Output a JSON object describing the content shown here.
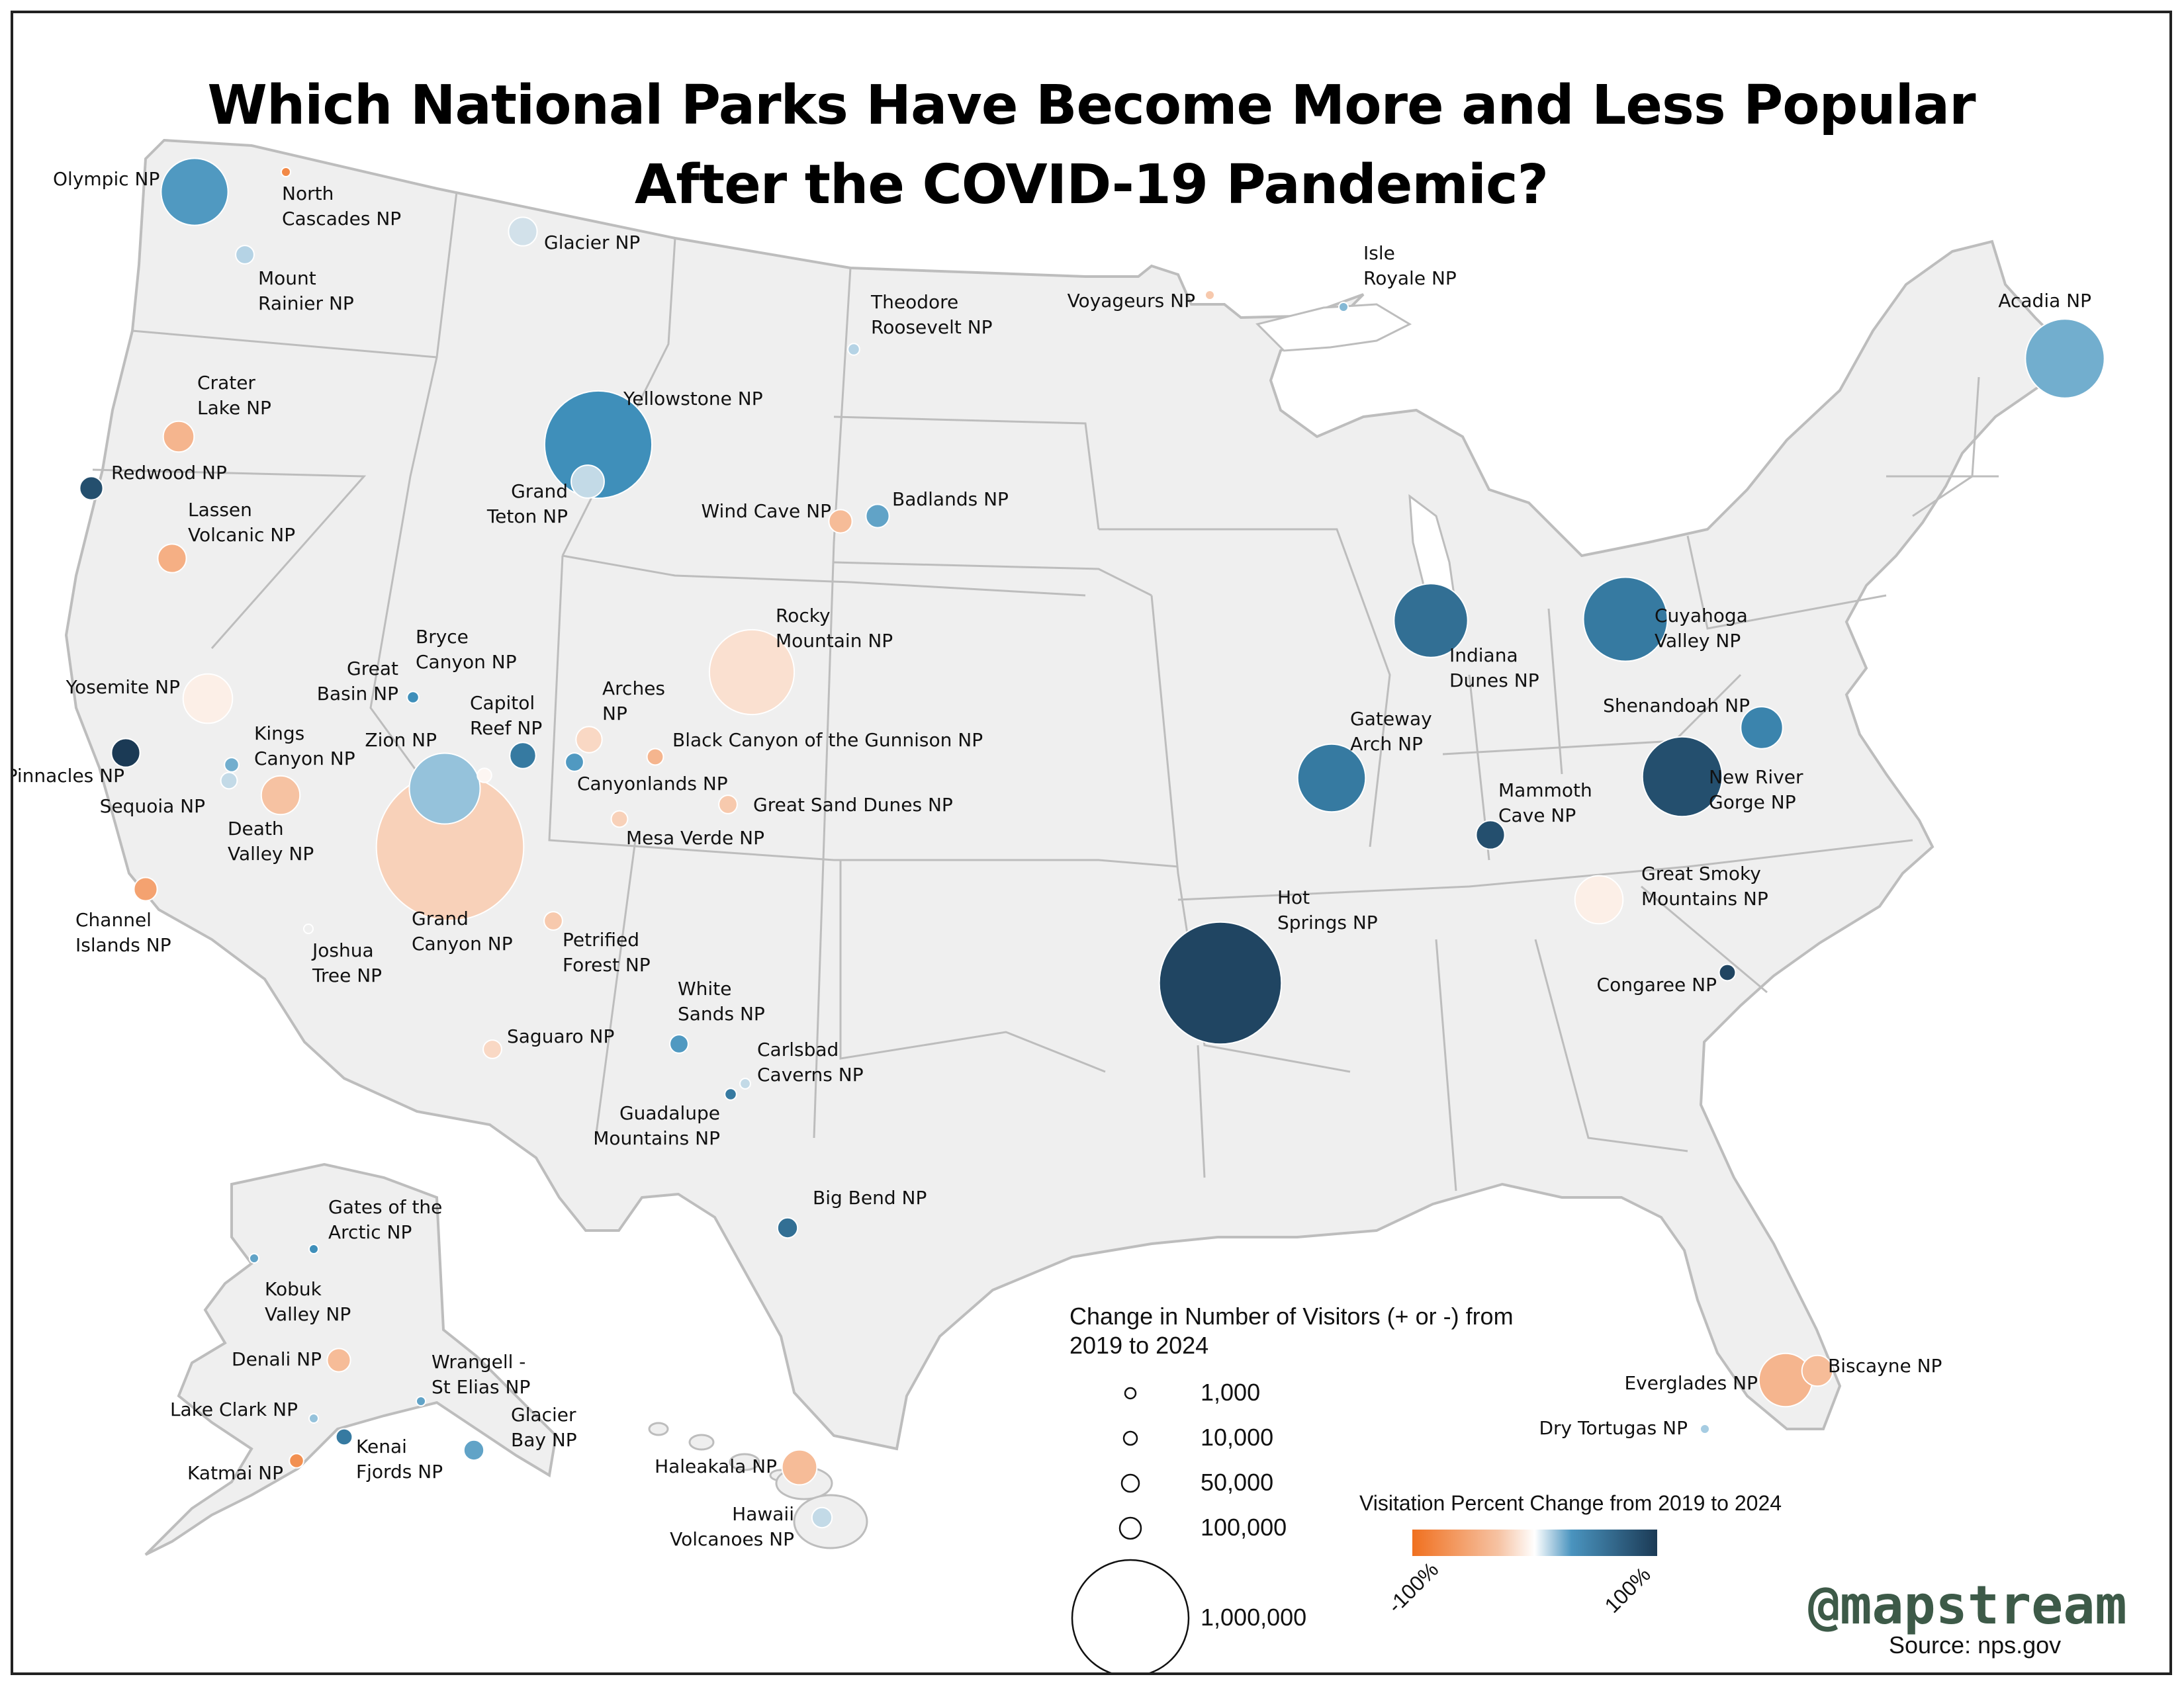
{
  "title": {
    "line1": "Which National Parks Have Become More and Less Popular",
    "line2": "After the COVID-19 Pandemic?"
  },
  "colors": {
    "land": "#efefef",
    "border": "#bdbdbd",
    "negative_strong": "#f0701f",
    "negative_light": "#f6c2a2",
    "neutral": "#fbf3ef",
    "positive_light": "#a8cfe3",
    "positive_mid": "#3e8db8",
    "positive_strong": "#1b3d57"
  },
  "parks": [
    {
      "name": [
        "Olympic NP"
      ],
      "pct": 0.55,
      "visitors": 330000
    },
    {
      "name": [
        "North",
        "Cascades NP"
      ],
      "pct": -0.8,
      "visitors": 2000
    },
    {
      "name": [
        "Mount",
        "Rainier NP"
      ],
      "pct": 0.25,
      "visitors": 25000
    },
    {
      "name": [
        "Glacier NP"
      ],
      "pct": 0.15,
      "visitors": 60000
    },
    {
      "name": [
        "Crater",
        "Lake NP"
      ],
      "pct": -0.45,
      "visitors": 70000
    },
    {
      "name": [
        "Redwood NP"
      ],
      "pct": 0.9,
      "visitors": 40000
    },
    {
      "name": [
        "Lassen",
        "Volcanic NP"
      ],
      "pct": -0.5,
      "visitors": 60000
    },
    {
      "name": [
        "Yellowstone NP"
      ],
      "pct": 0.6,
      "visitors": 850000
    },
    {
      "name": [
        "Grand",
        "Teton NP"
      ],
      "pct": 0.2,
      "visitors": 80000
    },
    {
      "name": [
        "Theodore",
        "Roosevelt NP"
      ],
      "pct": 0.25,
      "visitors": 10000
    },
    {
      "name": [
        "Voyageurs NP"
      ],
      "pct": -0.3,
      "visitors": 5000
    },
    {
      "name": [
        "Isle",
        "Royale NP"
      ],
      "pct": 0.4,
      "visitors": 3000
    },
    {
      "name": [
        "Acadia NP"
      ],
      "pct": 0.45,
      "visitors": 460000
    },
    {
      "name": [
        "Wind Cave NP"
      ],
      "pct": -0.4,
      "visitors": 40000
    },
    {
      "name": [
        "Badlands NP"
      ],
      "pct": 0.5,
      "visitors": 40000
    },
    {
      "name": [
        "Rocky",
        "Mountain NP"
      ],
      "pct": -0.15,
      "visitors": 530000
    },
    {
      "name": [
        "Yosemite NP"
      ],
      "pct": -0.05,
      "visitors": 180000
    },
    {
      "name": [
        "Pinnacles NP"
      ],
      "pct": 1.0,
      "visitors": 60000
    },
    {
      "name": [
        "Kings",
        "Canyon NP"
      ],
      "pct": 0.45,
      "visitors": 15000
    },
    {
      "name": [
        "Sequoia NP"
      ],
      "pct": 0.2,
      "visitors": 20000
    },
    {
      "name": [
        "Great",
        "Basin NP"
      ],
      "pct": 0.6,
      "visitors": 10000
    },
    {
      "name": [
        "Bryce",
        "Canyon NP"
      ],
      "pct": 0.0,
      "visitors": 15000
    },
    {
      "name": [
        "Zion NP"
      ],
      "pct": 0.35,
      "visitors": 370000
    },
    {
      "name": [
        "Grand",
        "Canyon NP"
      ],
      "pct": -0.25,
      "visitors": 1600000
    },
    {
      "name": [
        "Capitol",
        "Reef NP"
      ],
      "pct": 0.7,
      "visitors": 50000
    },
    {
      "name": [
        "Arches",
        "NP"
      ],
      "pct": -0.2,
      "visitors": 50000
    },
    {
      "name": [
        "Canyonlands NP"
      ],
      "pct": 0.55,
      "visitors": 25000
    },
    {
      "name": [
        "Black Canyon of the Gunnison NP"
      ],
      "pct": -0.45,
      "visitors": 20000
    },
    {
      "name": [
        "Great Sand Dunes NP"
      ],
      "pct": -0.3,
      "visitors": 25000
    },
    {
      "name": [
        "Mesa Verde NP"
      ],
      "pct": -0.25,
      "visitors": 20000
    },
    {
      "name": [
        "Death",
        "Valley NP"
      ],
      "pct": -0.35,
      "visitors": 110000
    },
    {
      "name": [
        "Channel",
        "Islands NP"
      ],
      "pct": -0.6,
      "visitors": 40000
    },
    {
      "name": [
        "Joshua",
        "Tree NP"
      ],
      "pct": 0.05,
      "visitors": 5000
    },
    {
      "name": [
        "Petrified",
        "Forest NP"
      ],
      "pct": -0.3,
      "visitors": 25000
    },
    {
      "name": [
        "Saguaro NP"
      ],
      "pct": -0.2,
      "visitors": 25000
    },
    {
      "name": [
        "White",
        "Sands NP"
      ],
      "pct": 0.55,
      "visitors": 25000
    },
    {
      "name": [
        "Carlsbad",
        "Caverns NP"
      ],
      "pct": 0.2,
      "visitors": 8000
    },
    {
      "name": [
        "Guadalupe",
        "Mountains NP"
      ],
      "pct": 0.7,
      "visitors": 10000
    },
    {
      "name": [
        "Big Bend NP"
      ],
      "pct": 0.75,
      "visitors": 30000
    },
    {
      "name": [
        "Indiana",
        "Dunes NP"
      ],
      "pct": 0.75,
      "visitors": 400000
    },
    {
      "name": [
        "Cuyahoga",
        "Valley NP"
      ],
      "pct": 0.7,
      "visitors": 520000
    },
    {
      "name": [
        "Gateway",
        "Arch NP"
      ],
      "pct": 0.7,
      "visitors": 340000
    },
    {
      "name": [
        "Shenandoah NP"
      ],
      "pct": 0.65,
      "visitors": 130000
    },
    {
      "name": [
        "New River",
        "Gorge NP"
      ],
      "pct": 0.9,
      "visitors": 470000
    },
    {
      "name": [
        "Mammoth",
        "Cave NP"
      ],
      "pct": 0.9,
      "visitors": 60000
    },
    {
      "name": [
        "Hot",
        "Springs NP"
      ],
      "pct": 0.95,
      "visitors": 1100000
    },
    {
      "name": [
        "Great Smoky",
        "Mountains NP"
      ],
      "pct": -0.05,
      "visitors": 170000
    },
    {
      "name": [
        "Congaree NP"
      ],
      "pct": 0.95,
      "visitors": 20000
    },
    {
      "name": [
        "Everglades NP"
      ],
      "pct": -0.45,
      "visitors": 210000
    },
    {
      "name": [
        "Biscayne NP"
      ],
      "pct": -0.4,
      "visitors": 70000
    },
    {
      "name": [
        "Dry Tortugas NP"
      ],
      "pct": 0.3,
      "visitors": 5000
    },
    {
      "name": [
        "Gates of the",
        "Arctic NP"
      ],
      "pct": 0.6,
      "visitors": 3000
    },
    {
      "name": [
        "Kobuk",
        "Valley NP"
      ],
      "pct": 0.5,
      "visitors": 3000
    },
    {
      "name": [
        "Denali NP"
      ],
      "pct": -0.4,
      "visitors": 40000
    },
    {
      "name": [
        "Wrangell -",
        "St Elias NP"
      ],
      "pct": 0.5,
      "visitors": 5000
    },
    {
      "name": [
        "Lake Clark NP"
      ],
      "pct": 0.35,
      "visitors": 5000
    },
    {
      "name": [
        "Kenai",
        "Fjords NP"
      ],
      "pct": 0.7,
      "visitors": 20000
    },
    {
      "name": [
        "Glacier",
        "Bay NP"
      ],
      "pct": 0.5,
      "visitors": 30000
    },
    {
      "name": [
        "Katmai NP"
      ],
      "pct": -0.75,
      "visitors": 15000
    },
    {
      "name": [
        "Haleakala NP"
      ],
      "pct": -0.4,
      "visitors": 90000
    },
    {
      "name": [
        "Hawaii",
        "Volcanoes NP"
      ],
      "pct": 0.2,
      "visitors": 30000
    }
  ],
  "legend": {
    "size_title": "Change in Number of Visitors (+ or -) from 2019 to 2024",
    "size_items": [
      {
        "label": "1,000",
        "value": 1000
      },
      {
        "label": "10,000",
        "value": 10000
      },
      {
        "label": "50,000",
        "value": 50000
      },
      {
        "label": "100,000",
        "value": 100000
      },
      {
        "label": "1,000,000",
        "value": 1000000
      }
    ],
    "color_title": "Visitation Percent Change from 2019 to 2024",
    "color_min": "-100%",
    "color_max": "100%"
  },
  "watermark": "@mapstream",
  "source": "Source: nps.gov"
}
